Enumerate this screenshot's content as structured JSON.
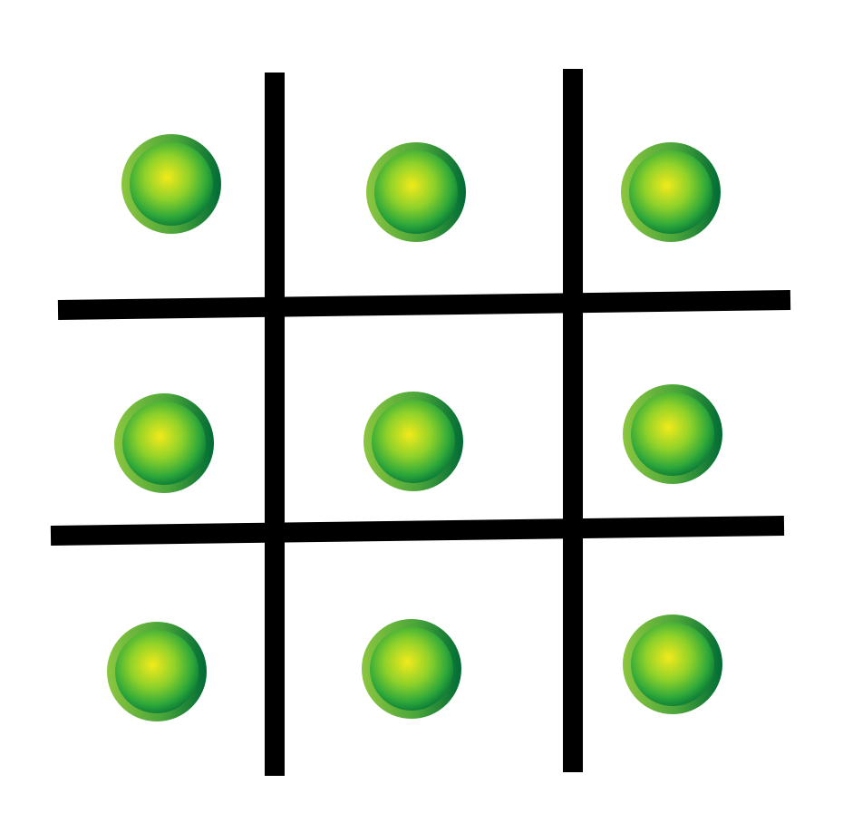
{
  "board": {
    "rows": 3,
    "cols": 3,
    "grid_line_color": "#000000",
    "background_color": "#ffffff",
    "cells": [
      [
        "green-circle",
        "green-circle",
        "green-circle"
      ],
      [
        "green-circle",
        "green-circle",
        "green-circle"
      ],
      [
        "green-circle",
        "green-circle",
        "green-circle"
      ]
    ]
  },
  "piece_colors": {
    "center": "#f2ea1a",
    "middle": "#3cb52f",
    "outer": "#0b7a36",
    "rim_light": "#8cc63f",
    "rim_dark": "#006b35"
  }
}
